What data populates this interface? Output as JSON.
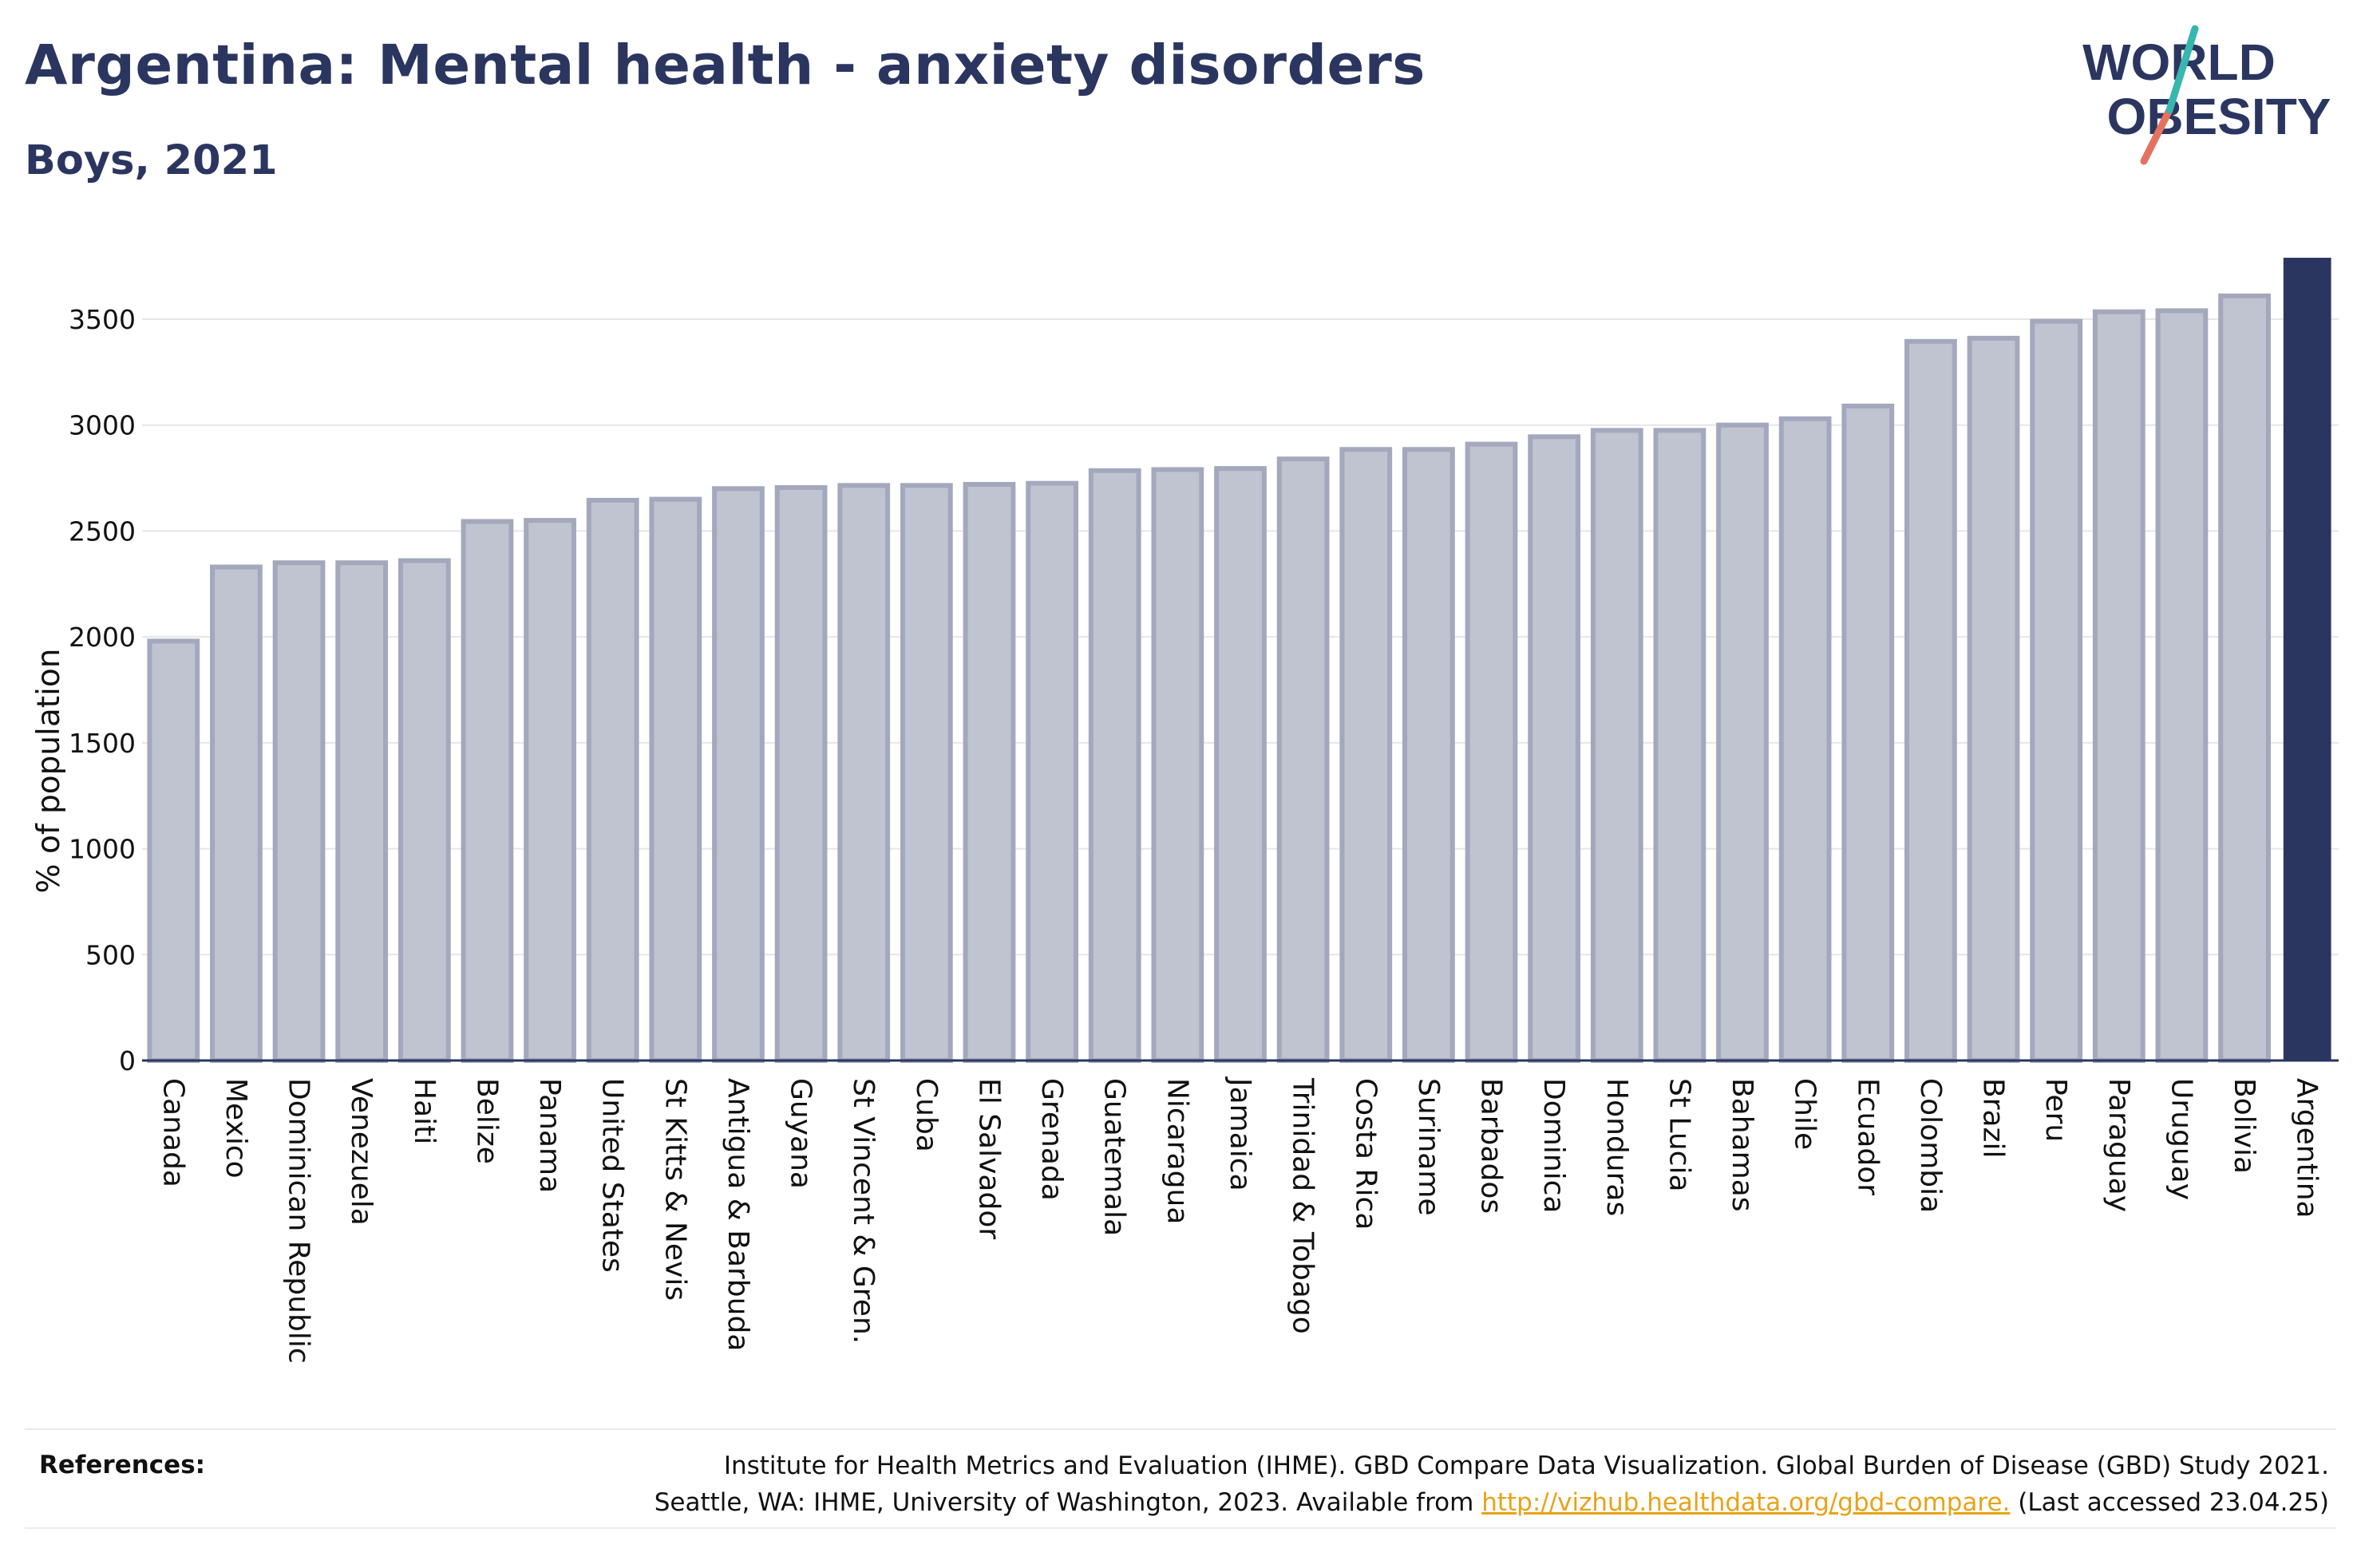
{
  "title": "Argentina: Mental health - anxiety disorders",
  "subtitle": "Boys, 2021",
  "logo": {
    "line1": "WORLD",
    "line2": "OBESITY",
    "colors": {
      "text": "#2b3660",
      "slash_teal": "#38b6b0",
      "slash_coral": "#e5725e"
    }
  },
  "colors": {
    "bar_fill": "#c0c3d0",
    "bar_stroke": "#a3a8bd",
    "highlight": "#2b3660",
    "text": "#2b3660",
    "axis_text": "#111111",
    "grid": "#e6e6ea",
    "link": "#e8a317"
  },
  "chart_data": {
    "type": "bar",
    "ylabel": "% of population",
    "xlabel": "",
    "ylim": [
      0,
      3790
    ],
    "yticks": [
      0,
      500,
      1000,
      1500,
      2000,
      2500,
      3000,
      3500
    ],
    "grid": true,
    "highlight": "Argentina",
    "categories": [
      "Canada",
      "Mexico",
      "Dominican Republic",
      "Venezuela",
      "Haiti",
      "Belize",
      "Panama",
      "United States",
      "St Kitts & Nevis",
      "Antigua & Barbuda",
      "Guyana",
      "St Vincent & Gren.",
      "Cuba",
      "El Salvador",
      "Grenada",
      "Guatemala",
      "Nicaragua",
      "Jamaica",
      "Trinidad & Tobago",
      "Costa Rica",
      "Suriname",
      "Barbados",
      "Dominica",
      "Honduras",
      "St Lucia",
      "Bahamas",
      "Chile",
      "Ecuador",
      "Colombia",
      "Brazil",
      "Peru",
      "Paraguay",
      "Uruguay",
      "Bolivia",
      "Argentina"
    ],
    "values": [
      1980,
      2330,
      2350,
      2350,
      2360,
      2545,
      2550,
      2645,
      2650,
      2700,
      2705,
      2715,
      2715,
      2720,
      2725,
      2785,
      2790,
      2795,
      2840,
      2885,
      2885,
      2910,
      2945,
      2975,
      2975,
      3000,
      3030,
      3090,
      3395,
      3410,
      3490,
      3535,
      3540,
      3610,
      3790
    ]
  },
  "references": {
    "label": "References:",
    "line1": "Institute for Health Metrics and Evaluation (IHME). GBD Compare Data Visualization. Global Burden of Disease (GBD) Study 2021.",
    "line2_prefix": "Seattle, WA: IHME, University of Washington, 2023. Available from",
    "link_text": "http://vizhub.healthdata.org/gbd-compare.",
    "line2_suffix": "(Last accessed 23.04.25)"
  }
}
